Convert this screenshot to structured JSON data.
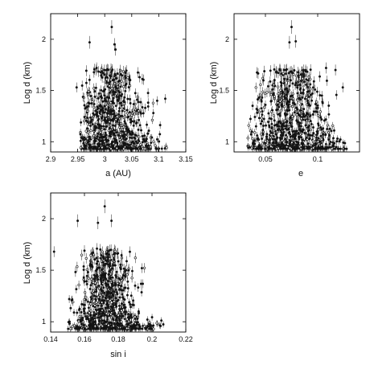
{
  "chart_data": [
    {
      "type": "scatter",
      "id": "panel-a",
      "xlabel": "a (AU)",
      "ylabel": "Log d (km)",
      "xlim": [
        2.9,
        3.15
      ],
      "ylim": [
        0.9,
        2.25
      ],
      "xticks": [
        2.9,
        2.95,
        3.0,
        3.05,
        3.1,
        3.15
      ],
      "xtick_labels": [
        "2.9",
        "2.95",
        "3",
        "3.05",
        "3.1",
        "3.15"
      ],
      "yticks": [
        1.0,
        1.5,
        2.0
      ],
      "ytick_labels": [
        "1",
        "1.5",
        "2"
      ],
      "error_bars": true,
      "cloud": {
        "x_center": 3.012,
        "x_spread": 0.028,
        "x_min": 2.955,
        "x_max": 3.115,
        "n": 900
      },
      "outliers": [
        {
          "x": 3.013,
          "y": 2.12
        },
        {
          "x": 2.972,
          "y": 1.97
        },
        {
          "x": 3.018,
          "y": 1.95
        },
        {
          "x": 3.02,
          "y": 1.9
        },
        {
          "x": 2.985,
          "y": 1.72
        },
        {
          "x": 2.948,
          "y": 1.53
        },
        {
          "x": 3.097,
          "y": 1.4
        },
        {
          "x": 3.112,
          "y": 1.42
        },
        {
          "x": 3.06,
          "y": 1.41
        },
        {
          "x": 3.09,
          "y": 1.28
        },
        {
          "x": 3.075,
          "y": 1.33
        }
      ]
    },
    {
      "type": "scatter",
      "id": "panel-e",
      "xlabel": "e",
      "ylabel": "Log d (km)",
      "xlim": [
        0.02,
        0.14
      ],
      "ylim": [
        0.9,
        2.25
      ],
      "xticks": [
        0.05,
        0.1
      ],
      "xtick_labels": [
        "0.05",
        "0.1"
      ],
      "yticks": [
        1.0,
        1.5,
        2.0
      ],
      "ytick_labels": [
        "1",
        "1.5",
        "2"
      ],
      "error_bars": true,
      "cloud": {
        "x_center": 0.075,
        "x_spread": 0.016,
        "x_min": 0.033,
        "x_max": 0.128,
        "n": 900
      },
      "outliers": [
        {
          "x": 0.075,
          "y": 2.12
        },
        {
          "x": 0.073,
          "y": 1.97
        },
        {
          "x": 0.079,
          "y": 1.98
        },
        {
          "x": 0.108,
          "y": 1.72
        },
        {
          "x": 0.117,
          "y": 1.7
        },
        {
          "x": 0.124,
          "y": 1.53
        },
        {
          "x": 0.095,
          "y": 1.47
        },
        {
          "x": 0.05,
          "y": 1.36
        },
        {
          "x": 0.041,
          "y": 1.15
        }
      ]
    },
    {
      "type": "scatter",
      "id": "panel-sini",
      "xlabel": "sin i",
      "ylabel": "Log d (km)",
      "xlim": [
        0.14,
        0.22
      ],
      "ylim": [
        0.9,
        2.25
      ],
      "xticks": [
        0.14,
        0.16,
        0.18,
        0.2,
        0.22
      ],
      "xtick_labels": [
        "0.14",
        "0.16",
        "0.18",
        "0.2",
        "0.22"
      ],
      "yticks": [
        1.0,
        1.5,
        2.0
      ],
      "ytick_labels": [
        "1",
        "1.5",
        "2"
      ],
      "error_bars": true,
      "cloud": {
        "x_center": 0.173,
        "x_spread": 0.0075,
        "x_min": 0.15,
        "x_max": 0.207,
        "n": 900
      },
      "outliers": [
        {
          "x": 0.172,
          "y": 2.12
        },
        {
          "x": 0.156,
          "y": 1.98
        },
        {
          "x": 0.168,
          "y": 1.96
        },
        {
          "x": 0.176,
          "y": 1.98
        },
        {
          "x": 0.16,
          "y": 1.69
        },
        {
          "x": 0.142,
          "y": 1.68
        },
        {
          "x": 0.194,
          "y": 1.52
        },
        {
          "x": 0.19,
          "y": 1.35
        },
        {
          "x": 0.151,
          "y": 1.22
        }
      ]
    }
  ]
}
